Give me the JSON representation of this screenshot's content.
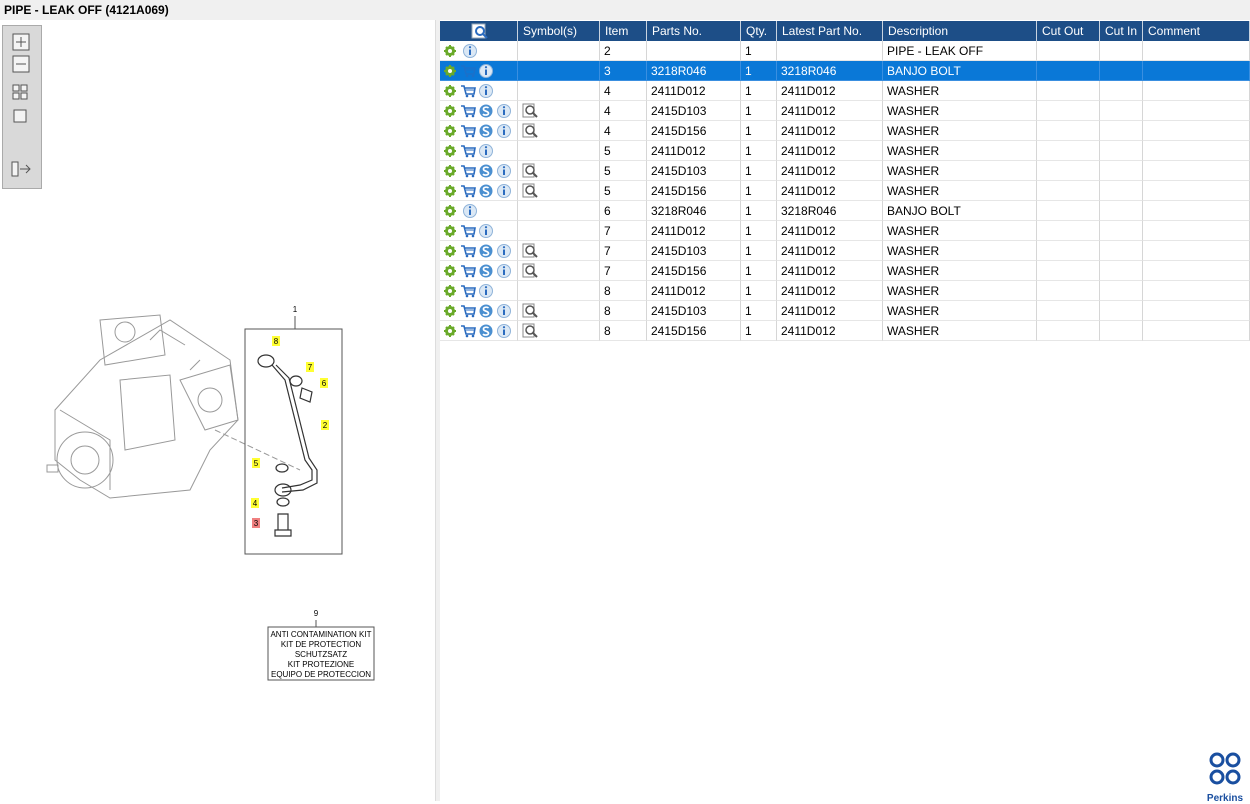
{
  "header": {
    "title": "PIPE - LEAK OFF (4121A069)"
  },
  "table": {
    "columns": [
      "Symbol(s)",
      "Item",
      "Parts No.",
      "Qty.",
      "Latest Part No.",
      "Description",
      "Cut Out",
      "Cut In",
      "Comment"
    ],
    "selected": 1,
    "rows": [
      [
        "2",
        null,
        "1",
        null,
        "PIPE - LEAK OFF"
      ],
      [
        "3",
        "3218R046",
        "1",
        "3218R046",
        "BANJO BOLT"
      ],
      [
        "4",
        "2411D012",
        "1",
        "2411D012",
        "WASHER"
      ],
      [
        "4",
        "2415D103",
        "1",
        "2411D012",
        "WASHER"
      ],
      [
        "4",
        "2415D156",
        "1",
        "2411D012",
        "WASHER"
      ],
      [
        "5",
        "2411D012",
        "1",
        "2411D012",
        "WASHER"
      ],
      [
        "5",
        "2415D103",
        "1",
        "2411D012",
        "WASHER"
      ],
      [
        "5",
        "2415D156",
        "1",
        "2411D012",
        "WASHER"
      ],
      [
        "6",
        "3218R046",
        "1",
        "3218R046",
        "BANJO BOLT"
      ],
      [
        "7",
        "2411D012",
        "1",
        "2411D012",
        "WASHER"
      ],
      [
        "7",
        "2415D103",
        "1",
        "2411D012",
        "WASHER"
      ],
      [
        "7",
        "2415D156",
        "1",
        "2411D012",
        "WASHER"
      ],
      [
        "8",
        "2411D012",
        "1",
        "2411D012",
        "WASHER"
      ],
      [
        "8",
        "2415D103",
        "1",
        "2411D012",
        "WASHER"
      ],
      [
        "8",
        "2415D156",
        "1",
        "2411D012",
        "WASHER"
      ]
    ]
  },
  "diagram": {
    "assembly": "1",
    "callouts": [
      {
        "label": "8",
        "highlight": "#ffff33"
      },
      {
        "label": "7",
        "highlight": "#ffff33"
      },
      {
        "label": "6",
        "highlight": "#ffff33"
      },
      {
        "label": "2",
        "highlight": "#ffff33"
      },
      {
        "label": "5",
        "highlight": "#ffff33"
      },
      {
        "label": "4",
        "highlight": "#ffff33"
      },
      {
        "label": "3",
        "highlight": "#f08080"
      }
    ],
    "kit": {
      "number": "9",
      "lines": [
        "ANTI CONTAMINATION KIT",
        "KIT DE PROTECTION",
        "SCHUTZSATZ",
        "KIT PROTEZIONE",
        "EQUIPO DE PROTECCION"
      ]
    }
  },
  "logo": "Perkins"
}
